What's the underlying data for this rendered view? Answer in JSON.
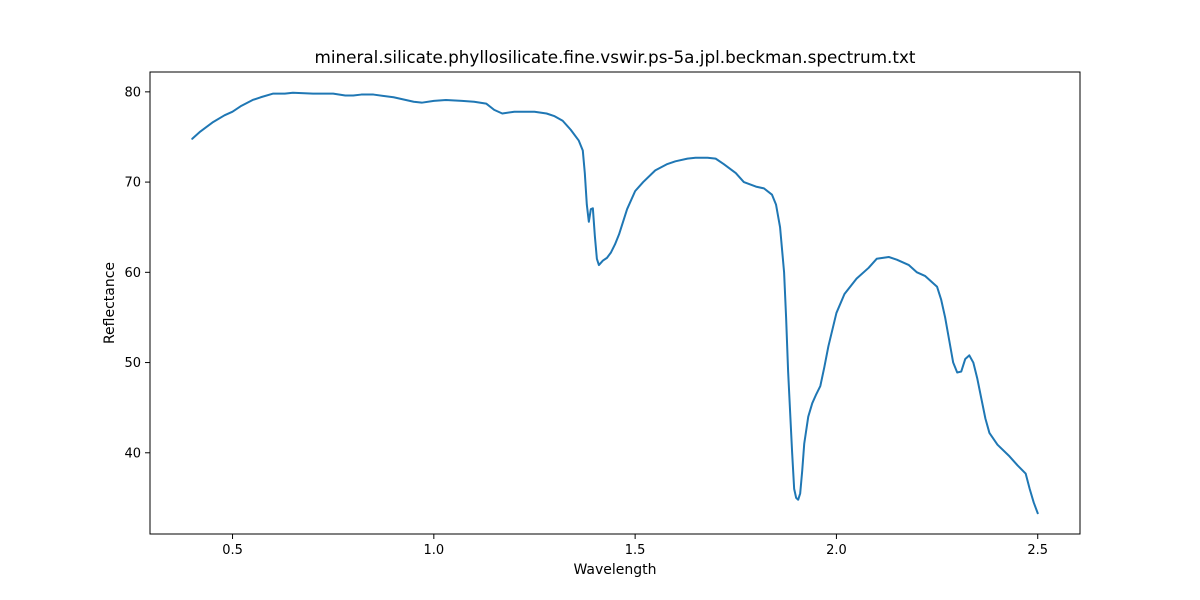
{
  "chart_data": {
    "type": "line",
    "title": "mineral.silicate.phyllosilicate.fine.vswir.ps-5a.jpl.beckman.spectrum.txt",
    "xlabel": "Wavelength",
    "ylabel": "Reflectance",
    "xlim": [
      0.295,
      2.605
    ],
    "ylim": [
      31.0,
      82.2
    ],
    "xticks": [
      0.5,
      1.0,
      1.5,
      2.0,
      2.5
    ],
    "xtick_labels": [
      "0.5",
      "1.0",
      "1.5",
      "2.0",
      "2.5"
    ],
    "yticks": [
      40,
      50,
      60,
      70,
      80
    ],
    "ytick_labels": [
      "40",
      "50",
      "60",
      "70",
      "80"
    ],
    "grid": false,
    "series": [
      {
        "color": "#1f77b4",
        "x": [
          0.4,
          0.42,
          0.45,
          0.48,
          0.5,
          0.52,
          0.55,
          0.57,
          0.6,
          0.63,
          0.65,
          0.7,
          0.75,
          0.78,
          0.8,
          0.82,
          0.85,
          0.9,
          0.95,
          0.97,
          1.0,
          1.03,
          1.07,
          1.1,
          1.13,
          1.15,
          1.17,
          1.2,
          1.23,
          1.25,
          1.28,
          1.3,
          1.32,
          1.34,
          1.36,
          1.37,
          1.375,
          1.38,
          1.385,
          1.39,
          1.395,
          1.4,
          1.405,
          1.41,
          1.42,
          1.43,
          1.44,
          1.45,
          1.46,
          1.48,
          1.5,
          1.52,
          1.55,
          1.58,
          1.6,
          1.63,
          1.65,
          1.68,
          1.7,
          1.72,
          1.75,
          1.77,
          1.8,
          1.82,
          1.84,
          1.85,
          1.86,
          1.87,
          1.875,
          1.88,
          1.89,
          1.895,
          1.9,
          1.905,
          1.91,
          1.915,
          1.92,
          1.93,
          1.94,
          1.95,
          1.96,
          1.97,
          1.98,
          2.0,
          2.02,
          2.05,
          2.08,
          2.1,
          2.13,
          2.15,
          2.18,
          2.2,
          2.22,
          2.25,
          2.26,
          2.27,
          2.28,
          2.29,
          2.3,
          2.31,
          2.32,
          2.33,
          2.34,
          2.35,
          2.36,
          2.37,
          2.38,
          2.4,
          2.43,
          2.45,
          2.47,
          2.48,
          2.49,
          2.5
        ],
        "y": [
          74.8,
          75.6,
          76.6,
          77.4,
          77.8,
          78.4,
          79.1,
          79.4,
          79.8,
          79.8,
          79.9,
          79.8,
          79.8,
          79.6,
          79.6,
          79.7,
          79.7,
          79.4,
          78.9,
          78.8,
          79.0,
          79.1,
          79.0,
          78.9,
          78.7,
          78.0,
          77.6,
          77.8,
          77.8,
          77.8,
          77.6,
          77.3,
          76.8,
          75.8,
          74.6,
          73.5,
          71.0,
          67.5,
          65.6,
          67.0,
          67.1,
          64.0,
          61.5,
          60.8,
          61.3,
          61.6,
          62.2,
          63.1,
          64.2,
          67.0,
          69.0,
          70.0,
          71.3,
          72.0,
          72.3,
          72.6,
          72.7,
          72.7,
          72.6,
          72.0,
          71.0,
          70.0,
          69.5,
          69.3,
          68.6,
          67.5,
          65.0,
          60.0,
          55.0,
          49.0,
          40.0,
          36.0,
          35.0,
          34.8,
          35.5,
          38.0,
          41.0,
          44.0,
          45.5,
          46.5,
          47.4,
          49.5,
          51.8,
          55.5,
          57.6,
          59.3,
          60.5,
          61.5,
          61.7,
          61.4,
          60.8,
          60.0,
          59.6,
          58.4,
          57.0,
          55.0,
          52.5,
          50.0,
          48.9,
          49.0,
          50.4,
          50.8,
          50.0,
          48.2,
          46.0,
          43.8,
          42.2,
          40.9,
          39.6,
          38.6,
          37.7,
          36.0,
          34.5,
          33.3
        ]
      }
    ]
  }
}
